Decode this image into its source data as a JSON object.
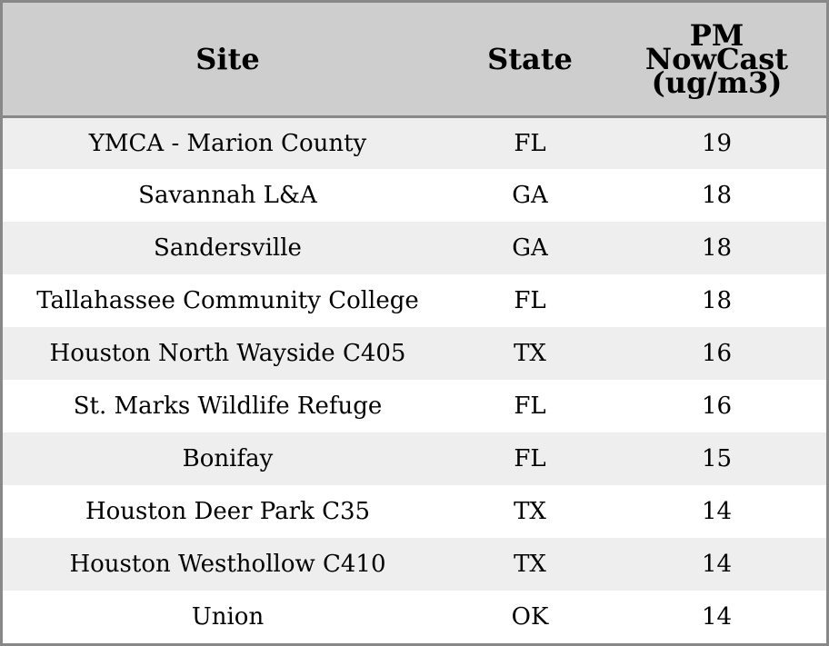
{
  "chart_data": {
    "type": "table",
    "columns": [
      "Site",
      "State",
      "PM NowCast (ug/m3)"
    ],
    "header_lines": {
      "site": [
        "Site"
      ],
      "state": [
        "State"
      ],
      "pm": [
        "PM",
        "NowCast",
        "(ug/m3)"
      ]
    },
    "rows": [
      {
        "site": "YMCA - Marion County",
        "state": "FL",
        "pm": 19
      },
      {
        "site": "Savannah L&A",
        "state": "GA",
        "pm": 18
      },
      {
        "site": "Sandersville",
        "state": "GA",
        "pm": 18
      },
      {
        "site": "Tallahassee Community College",
        "state": "FL",
        "pm": 18
      },
      {
        "site": "Houston North Wayside C405",
        "state": "TX",
        "pm": 16
      },
      {
        "site": "St. Marks Wildlife Refuge",
        "state": "FL",
        "pm": 16
      },
      {
        "site": "Bonifay",
        "state": "FL",
        "pm": 15
      },
      {
        "site": "Houston Deer Park C35",
        "state": "TX",
        "pm": 14
      },
      {
        "site": "Houston Westhollow C410",
        "state": "TX",
        "pm": 14
      },
      {
        "site": "Union",
        "state": "OK",
        "pm": 14
      }
    ]
  },
  "colors": {
    "header_bg": "#cecece",
    "row_shaded": "#eeeeee",
    "row_plain": "#ffffff",
    "border": "#888888"
  }
}
